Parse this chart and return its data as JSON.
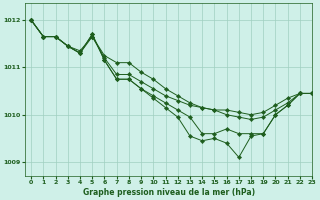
{
  "xlabel": "Graphe pression niveau de la mer (hPa)",
  "bg_color": "#cff0e8",
  "line_color": "#1e5e1e",
  "grid_color": "#a0cfc0",
  "ylim": [
    1008.7,
    1012.35
  ],
  "xlim": [
    -0.5,
    23
  ],
  "yticks": [
    1009,
    1010,
    1011,
    1012
  ],
  "xticks": [
    0,
    1,
    2,
    3,
    4,
    5,
    6,
    7,
    8,
    9,
    10,
    11,
    12,
    13,
    14,
    15,
    16,
    17,
    18,
    19,
    20,
    21,
    22,
    23
  ],
  "series": [
    [
      1012.0,
      1011.65,
      1011.65,
      1011.45,
      1011.35,
      1011.65,
      1011.2,
      1010.85,
      1010.85,
      1010.7,
      1010.55,
      1010.4,
      1010.3,
      1010.2,
      1010.15,
      1010.1,
      1010.1,
      1010.05,
      1010.0,
      1010.05,
      1010.2,
      1010.35,
      1010.45,
      1010.45
    ],
    [
      1012.0,
      1011.65,
      1011.65,
      1011.45,
      1011.3,
      1011.65,
      1011.25,
      1011.1,
      1011.1,
      1010.9,
      1010.75,
      1010.55,
      1010.4,
      1010.25,
      1010.15,
      1010.1,
      1010.0,
      1009.95,
      1009.9,
      1009.95,
      1010.1,
      1010.25,
      1010.45,
      1010.45
    ],
    [
      1012.0,
      1011.65,
      1011.65,
      1011.45,
      1011.3,
      1011.7,
      1011.15,
      1010.75,
      1010.75,
      1010.55,
      1010.35,
      1010.15,
      1009.95,
      1009.55,
      1009.45,
      1009.5,
      1009.4,
      1009.1,
      1009.55,
      1009.6,
      1010.0,
      1010.2,
      1010.45,
      1010.45
    ],
    [
      1012.0,
      1011.65,
      1011.65,
      1011.45,
      1011.3,
      1011.7,
      1011.15,
      1010.75,
      1010.75,
      1010.55,
      1010.4,
      1010.25,
      1010.1,
      1009.95,
      1009.6,
      1009.6,
      1009.7,
      1009.6,
      1009.6,
      1009.6,
      1010.0,
      1010.2,
      1010.45,
      1010.45
    ]
  ]
}
